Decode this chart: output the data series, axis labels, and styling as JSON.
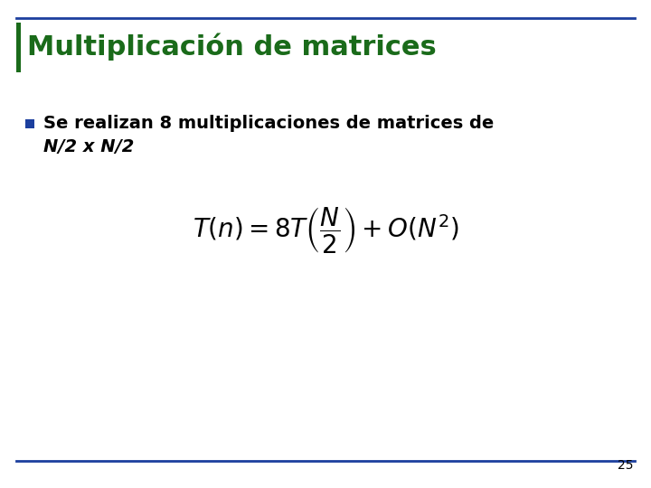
{
  "title": "Multiplicación de matrices",
  "title_color": "#1a6b1a",
  "title_fontsize": 22,
  "bullet_text_line1": "Se realizan 8 multiplicaciones de matrices de",
  "bullet_text_line2": "N/2 x N/2",
  "bullet_square_color": "#1c3f9e",
  "formula_fontsize": 20,
  "text_color": "#000000",
  "background_color": "#ffffff",
  "page_number": "25",
  "left_bar_color": "#1a6b1a",
  "bottom_line_color": "#1c3f9e",
  "top_line_color": "#1c3f9e"
}
